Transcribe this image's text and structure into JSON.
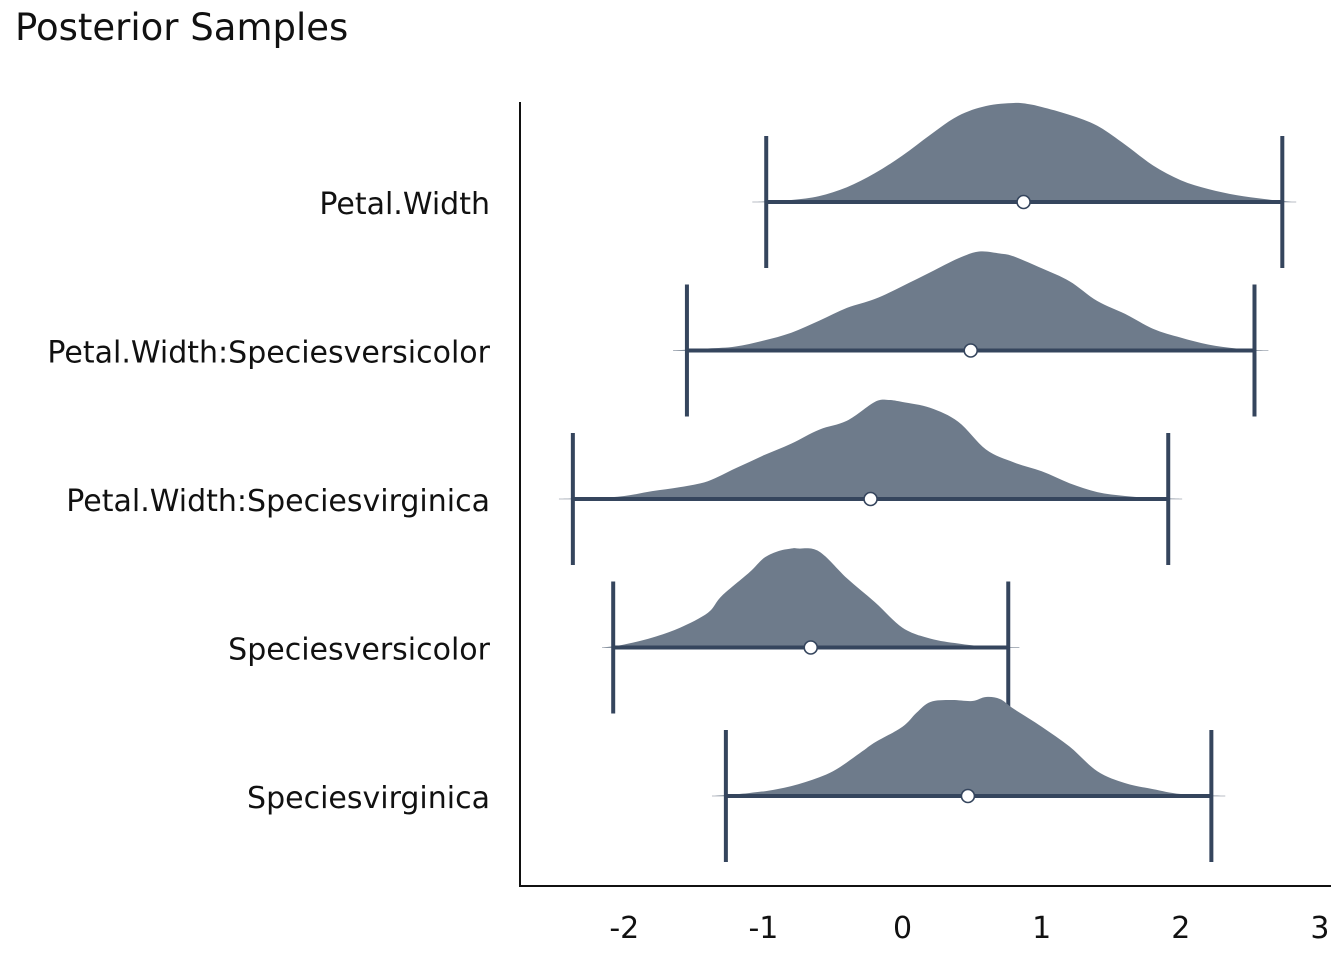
{
  "chart_data": {
    "type": "ridge",
    "title": "Posterior Samples",
    "xlabel": "",
    "ylabel": "",
    "xlim": [
      -2.75,
      3.08
    ],
    "xticks": [
      -2,
      -1,
      0,
      1,
      2,
      3
    ],
    "grid": false,
    "colors": {
      "fill": "#6e7b8b",
      "line": "#35455d",
      "point_fill": "#ffffff"
    },
    "series": [
      {
        "name": "Petal.Width",
        "ci": [
          -0.98,
          2.73
        ],
        "point": 0.87,
        "range": [
          -1.08,
          2.83
        ],
        "density_x": [
          -1.05,
          -0.8,
          -0.6,
          -0.4,
          -0.2,
          0.0,
          0.2,
          0.4,
          0.6,
          0.8,
          0.9,
          1.0,
          1.2,
          1.4,
          1.6,
          1.8,
          2.0,
          2.2,
          2.4,
          2.6,
          2.8
        ],
        "density_y": [
          0.0,
          0.02,
          0.06,
          0.15,
          0.29,
          0.47,
          0.68,
          0.87,
          0.97,
          1.0,
          0.99,
          0.96,
          0.88,
          0.77,
          0.58,
          0.37,
          0.22,
          0.13,
          0.07,
          0.03,
          0.0
        ]
      },
      {
        "name": "Petal.Width:Speciesversicolor",
        "ci": [
          -1.55,
          2.53
        ],
        "point": 0.49,
        "range": [
          -1.65,
          2.63
        ],
        "density_x": [
          -1.65,
          -1.4,
          -1.2,
          -1.0,
          -0.8,
          -0.6,
          -0.4,
          -0.2,
          0.0,
          0.2,
          0.4,
          0.55,
          0.7,
          0.8,
          1.0,
          1.2,
          1.4,
          1.6,
          1.8,
          2.0,
          2.2,
          2.4,
          2.6
        ],
        "density_y": [
          0.0,
          0.02,
          0.04,
          0.1,
          0.18,
          0.3,
          0.43,
          0.52,
          0.65,
          0.79,
          0.93,
          1.0,
          0.98,
          0.95,
          0.83,
          0.7,
          0.5,
          0.37,
          0.22,
          0.13,
          0.06,
          0.02,
          0.0
        ]
      },
      {
        "name": "Petal.Width:Speciesvirginica",
        "ci": [
          -2.37,
          1.91
        ],
        "point": -0.23,
        "range": [
          -2.47,
          2.01
        ],
        "density_x": [
          -2.45,
          -2.2,
          -2.0,
          -1.8,
          -1.6,
          -1.4,
          -1.2,
          -1.0,
          -0.8,
          -0.6,
          -0.4,
          -0.2,
          -0.1,
          0.0,
          0.2,
          0.4,
          0.6,
          0.8,
          1.0,
          1.2,
          1.4,
          1.6,
          1.8,
          2.0
        ],
        "density_y": [
          0.0,
          0.01,
          0.03,
          0.08,
          0.12,
          0.18,
          0.31,
          0.44,
          0.56,
          0.7,
          0.79,
          0.98,
          1.0,
          0.98,
          0.92,
          0.78,
          0.5,
          0.37,
          0.28,
          0.16,
          0.07,
          0.03,
          0.01,
          0.0
        ]
      },
      {
        "name": "Speciesversicolor",
        "ci": [
          -2.08,
          0.76
        ],
        "point": -0.66,
        "range": [
          -2.16,
          0.84
        ],
        "density_x": [
          -2.15,
          -2.0,
          -1.8,
          -1.6,
          -1.4,
          -1.3,
          -1.1,
          -1.0,
          -0.9,
          -0.8,
          -0.75,
          -0.6,
          -0.4,
          -0.2,
          0.0,
          0.2,
          0.4,
          0.6,
          0.85
        ],
        "density_y": [
          0.0,
          0.03,
          0.1,
          0.2,
          0.35,
          0.52,
          0.76,
          0.9,
          0.97,
          1.0,
          1.0,
          0.97,
          0.7,
          0.46,
          0.2,
          0.09,
          0.04,
          0.01,
          0.0
        ]
      },
      {
        "name": "Speciesvirginica",
        "ci": [
          -1.27,
          2.22
        ],
        "point": 0.47,
        "range": [
          -1.37,
          2.32
        ],
        "density_x": [
          -1.35,
          -1.1,
          -0.9,
          -0.7,
          -0.5,
          -0.3,
          -0.2,
          0.0,
          0.1,
          0.2,
          0.35,
          0.5,
          0.6,
          0.7,
          0.8,
          1.0,
          1.2,
          1.4,
          1.6,
          1.8,
          2.0,
          2.3
        ],
        "density_y": [
          0.0,
          0.03,
          0.07,
          0.14,
          0.25,
          0.44,
          0.54,
          0.7,
          0.84,
          0.95,
          0.97,
          0.96,
          1.0,
          0.98,
          0.88,
          0.7,
          0.5,
          0.25,
          0.13,
          0.07,
          0.02,
          0.0
        ]
      }
    ]
  }
}
